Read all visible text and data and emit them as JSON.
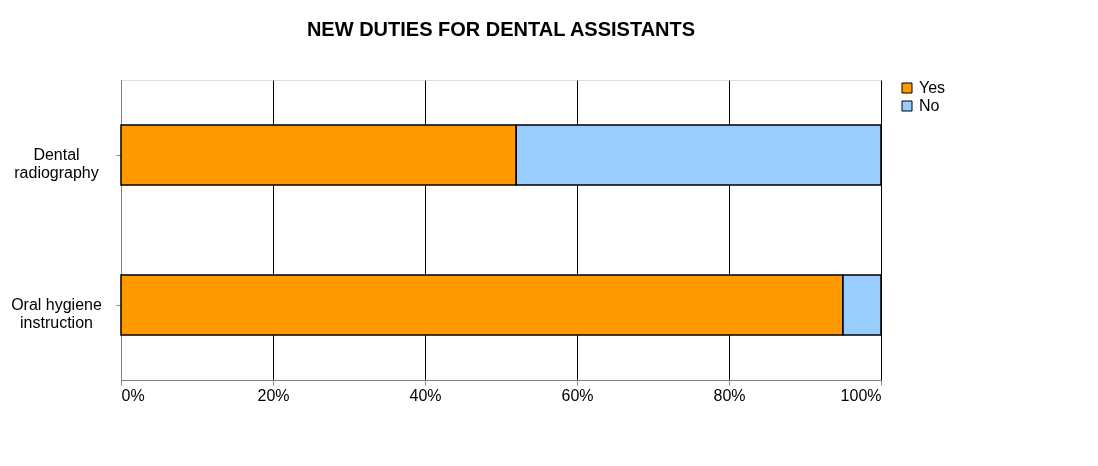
{
  "chart_data": {
    "type": "bar",
    "orientation": "horizontal",
    "stacked": true,
    "title": "NEW DUTIES FOR DENTAL ASSISTANTS",
    "categories": [
      "Dental radiography",
      "Oral hygiene instruction"
    ],
    "series": [
      {
        "name": "Yes",
        "color": "#ff9900",
        "values": [
          52,
          95
        ]
      },
      {
        "name": "No",
        "color": "#99ccff",
        "values": [
          48,
          5
        ]
      }
    ],
    "xlim": [
      0,
      100
    ],
    "xticks": [
      {
        "value": 0,
        "label": "0%"
      },
      {
        "value": 20,
        "label": "20%"
      },
      {
        "value": 40,
        "label": "40%"
      },
      {
        "value": 60,
        "label": "60%"
      },
      {
        "value": 80,
        "label": "80%"
      },
      {
        "value": 100,
        "label": "100%"
      }
    ],
    "grid": "x",
    "legend": "right"
  }
}
